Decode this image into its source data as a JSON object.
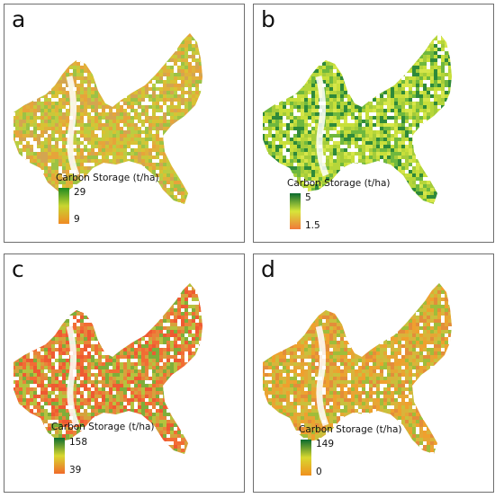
{
  "panels": [
    {
      "label": "a",
      "legend": {
        "title": "Carbon Storage (t/ha)",
        "max": "29",
        "min": "9",
        "colors": [
          "#1f8a1f",
          "#c8d630",
          "#f08a24"
        ]
      },
      "palette": [
        "#d9c233",
        "#c9c83a",
        "#e0b13a",
        "#b9cd42",
        "#e7a43a",
        "#9cc245",
        "#d4a550"
      ]
    },
    {
      "label": "b",
      "legend": {
        "title": "Carbon Storage (t/ha)",
        "max": "5",
        "min": "1.5",
        "colors": [
          "#0b6b2f",
          "#d7e63a",
          "#f07a3a"
        ]
      },
      "palette": [
        "#c8df3a",
        "#b6d63a",
        "#d6e64a",
        "#a4cc3a",
        "#6fb83e",
        "#2f8a3a"
      ]
    },
    {
      "label": "c",
      "legend": {
        "title": "Carbon Storage (t/ha)",
        "max": "158",
        "min": "39",
        "colors": [
          "#0b6b2f",
          "#d9d82f",
          "#f06a2a"
        ]
      },
      "palette": [
        "#ee5a32",
        "#f26c34",
        "#e8843a",
        "#d6a23c",
        "#b6c23e",
        "#7eae3a"
      ]
    },
    {
      "label": "d",
      "legend": {
        "title": "Carbon Storage (t/ha)",
        "max": "149",
        "min": "0",
        "colors": [
          "#0b6b2f",
          "#d9d82f",
          "#f0901e"
        ]
      },
      "palette": [
        "#e6a634",
        "#d9b43a",
        "#efa02e",
        "#c9c03c",
        "#e38d3a",
        "#9fbd3a"
      ]
    }
  ]
}
